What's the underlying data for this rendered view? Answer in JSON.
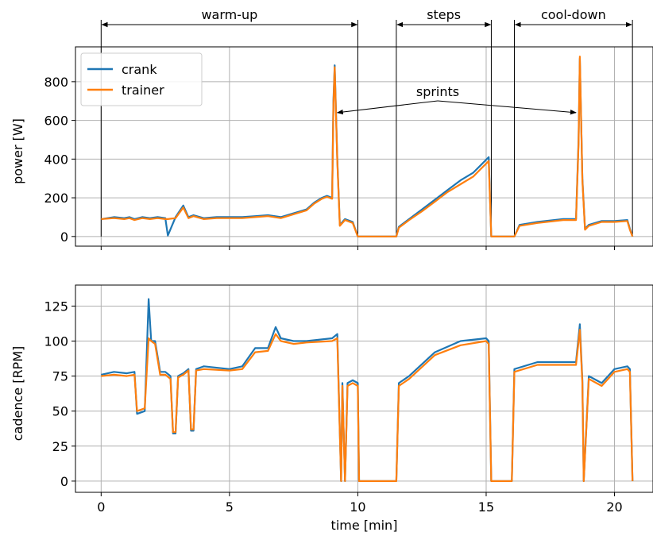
{
  "chart_data": [
    {
      "type": "line",
      "title": "",
      "ylabel": "power [W]",
      "xlim": [
        -1.0,
        21.5
      ],
      "ylim": [
        -50,
        980
      ],
      "xticks": [
        0,
        5,
        10,
        15,
        20
      ],
      "yticks": [
        0,
        200,
        400,
        600,
        800
      ],
      "grid": true,
      "legend": {
        "position": "top-left",
        "entries": [
          "crank",
          "trainer"
        ]
      },
      "x": [
        0,
        0.5,
        0.9,
        1.1,
        1.3,
        1.6,
        1.9,
        2.2,
        2.5,
        2.6,
        2.9,
        3.2,
        3.4,
        3.6,
        4.0,
        4.5,
        5.0,
        5.5,
        6.0,
        6.5,
        7.0,
        7.5,
        8.0,
        8.3,
        8.6,
        8.8,
        9.0,
        9.05,
        9.1,
        9.2,
        9.3,
        9.5,
        9.8,
        10.0,
        10.05,
        11.5,
        11.6,
        12.0,
        12.5,
        13.0,
        13.5,
        14.0,
        14.5,
        14.8,
        15.1,
        15.2,
        16.1,
        16.3,
        17.0,
        18.0,
        18.5,
        18.6,
        18.65,
        18.75,
        18.85,
        19.0,
        19.5,
        20.0,
        20.5,
        20.6,
        20.7
      ],
      "series": [
        {
          "name": "crank",
          "values": [
            90,
            100,
            95,
            100,
            90,
            100,
            95,
            100,
            95,
            5,
            100,
            160,
            100,
            110,
            95,
            100,
            100,
            100,
            105,
            110,
            100,
            120,
            140,
            175,
            200,
            210,
            200,
            700,
            885,
            400,
            60,
            90,
            75,
            0,
            0,
            0,
            50,
            90,
            140,
            190,
            240,
            290,
            330,
            370,
            410,
            0,
            0,
            60,
            75,
            90,
            90,
            500,
            920,
            300,
            40,
            60,
            80,
            80,
            85,
            40,
            0
          ]
        },
        {
          "name": "trainer",
          "values": [
            90,
            95,
            90,
            95,
            85,
            95,
            90,
            95,
            90,
            90,
            95,
            150,
            95,
            105,
            90,
            95,
            95,
            95,
            100,
            105,
            95,
            115,
            135,
            170,
            195,
            205,
            195,
            680,
            875,
            390,
            55,
            85,
            70,
            0,
            0,
            0,
            45,
            85,
            130,
            180,
            230,
            270,
            310,
            350,
            390,
            0,
            0,
            55,
            70,
            85,
            85,
            480,
            930,
            290,
            35,
            55,
            75,
            75,
            80,
            35,
            0
          ]
        }
      ],
      "annotations": [
        {
          "text": "warm-up",
          "x_start": 0,
          "x_end": 10.0
        },
        {
          "text": "steps",
          "x_start": 11.5,
          "x_end": 15.2
        },
        {
          "text": "cool-down",
          "x_start": 16.1,
          "x_end": 20.7
        },
        {
          "text": "sprints",
          "targets": [
            [
              9.2,
              640
            ],
            [
              18.5,
              640
            ]
          ]
        }
      ]
    },
    {
      "type": "line",
      "title": "",
      "xlabel": "time [min]",
      "ylabel": "cadence [RPM]",
      "xlim": [
        -1.0,
        21.5
      ],
      "ylim": [
        -8,
        140
      ],
      "xticks": [
        0,
        5,
        10,
        15,
        20
      ],
      "yticks": [
        0,
        25,
        50,
        75,
        100,
        125
      ],
      "grid": true,
      "x": [
        0,
        0.5,
        1.0,
        1.3,
        1.4,
        1.7,
        1.85,
        1.95,
        2.1,
        2.3,
        2.5,
        2.7,
        2.8,
        2.9,
        3.0,
        3.2,
        3.4,
        3.5,
        3.6,
        3.7,
        4.0,
        5.0,
        5.5,
        6.0,
        6.5,
        6.8,
        7.0,
        7.5,
        8.0,
        9.0,
        9.2,
        9.35,
        9.4,
        9.5,
        9.6,
        9.8,
        10.0,
        10.05,
        11.5,
        11.6,
        12.0,
        13.0,
        14.0,
        15.0,
        15.1,
        15.2,
        16.0,
        16.1,
        17.0,
        18.5,
        18.65,
        18.75,
        18.8,
        19.0,
        19.5,
        20.0,
        20.5,
        20.6,
        20.7
      ],
      "series": [
        {
          "name": "crank",
          "values": [
            76,
            78,
            77,
            78,
            48,
            50,
            130,
            100,
            100,
            78,
            78,
            75,
            34,
            34,
            75,
            77,
            80,
            36,
            36,
            80,
            82,
            80,
            82,
            95,
            95,
            110,
            102,
            100,
            100,
            102,
            105,
            0,
            70,
            0,
            70,
            72,
            70,
            0,
            0,
            70,
            75,
            92,
            100,
            102,
            100,
            0,
            0,
            80,
            85,
            85,
            112,
            72,
            0,
            75,
            70,
            80,
            82,
            80,
            0
          ]
        },
        {
          "name": "trainer",
          "values": [
            75,
            76,
            75,
            76,
            50,
            52,
            102,
            100,
            98,
            76,
            76,
            73,
            35,
            35,
            74,
            76,
            79,
            37,
            37,
            79,
            80,
            79,
            80,
            92,
            93,
            105,
            100,
            98,
            99,
            100,
            102,
            0,
            68,
            0,
            68,
            70,
            68,
            0,
            0,
            68,
            73,
            90,
            97,
            100,
            98,
            0,
            0,
            78,
            83,
            83,
            108,
            70,
            0,
            73,
            68,
            78,
            80,
            78,
            0
          ]
        }
      ]
    }
  ]
}
